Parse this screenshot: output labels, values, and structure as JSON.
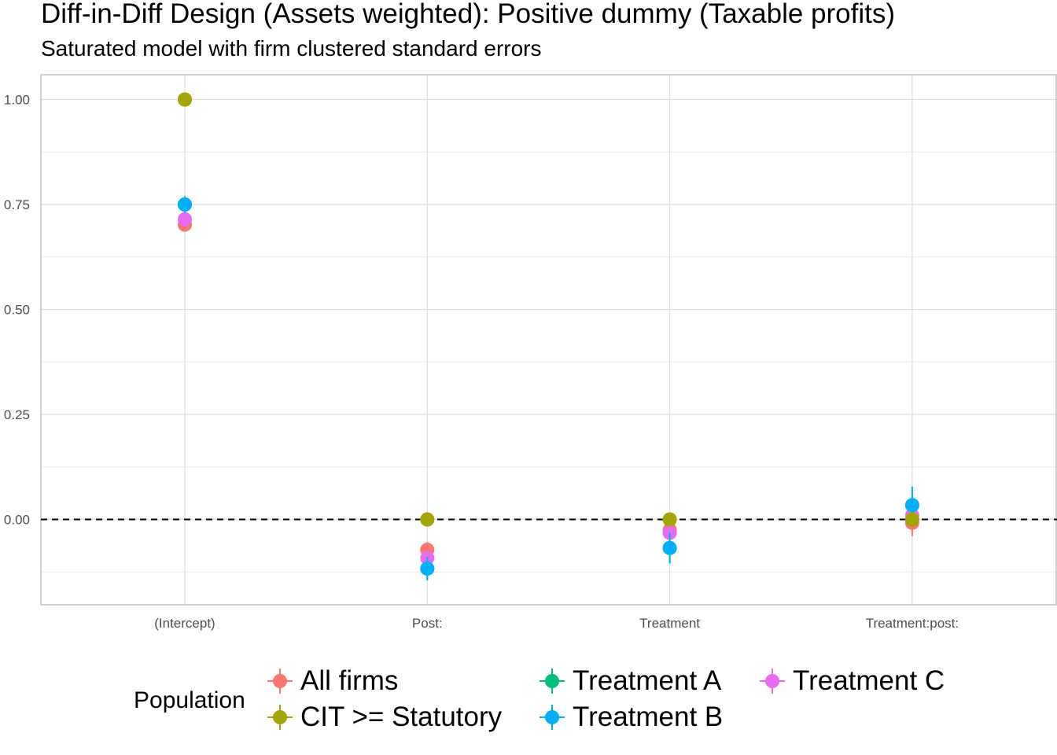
{
  "title": "Diff-in-Diff Design (Assets weighted): Positive dummy (Taxable profits)",
  "subtitle": "Saturated model with firm clustered standard errors",
  "legend": {
    "title": "Population"
  },
  "chart_data": {
    "type": "scatter",
    "title": "Diff-in-Diff Design (Assets weighted): Positive dummy (Taxable profits)",
    "subtitle": "Saturated model with firm clustered standard errors",
    "xlabel": "",
    "ylabel": "",
    "categories": [
      "(Intercept)",
      "Post:",
      "Treatment",
      "Treatment:post:"
    ],
    "ylim": [
      -0.2,
      1.06
    ],
    "yticks": [
      "0.00",
      "0.25",
      "0.50",
      "0.75",
      "1.00"
    ],
    "reference_line": 0,
    "grid": true,
    "legend_position": "bottom",
    "series": [
      {
        "name": "All firms",
        "color": "#F8766D",
        "values": [
          0.702,
          -0.072,
          -0.025,
          -0.008
        ],
        "ci_low": [
          0.69,
          -0.09,
          -0.045,
          -0.04
        ],
        "ci_high": [
          0.714,
          -0.054,
          -0.005,
          0.024
        ]
      },
      {
        "name": "CIT >= Statutory",
        "color": "#A3A500",
        "values": [
          1.0,
          0.0,
          0.0,
          0.0
        ],
        "ci_low": [
          0.998,
          -0.003,
          -0.003,
          -0.003
        ],
        "ci_high": [
          1.002,
          0.003,
          0.003,
          0.003
        ]
      },
      {
        "name": "Treatment A",
        "color": "#00BF7D",
        "values": [
          0.75,
          -0.117,
          -0.068,
          0.034
        ],
        "ci_low": [
          0.73,
          -0.145,
          -0.105,
          -0.01
        ],
        "ci_high": [
          0.77,
          -0.089,
          -0.031,
          0.078
        ]
      },
      {
        "name": "Treatment B",
        "color": "#00B0F6",
        "values": [
          0.75,
          -0.117,
          -0.068,
          0.034
        ],
        "ci_low": [
          0.73,
          -0.145,
          -0.105,
          -0.01
        ],
        "ci_high": [
          0.77,
          -0.089,
          -0.031,
          0.078
        ]
      },
      {
        "name": "Treatment C",
        "color": "#E76BF3",
        "values": [
          0.715,
          -0.092,
          -0.032,
          0.01
        ],
        "ci_low": [
          0.705,
          -0.105,
          -0.045,
          -0.005
        ],
        "ci_high": [
          0.725,
          -0.079,
          -0.019,
          0.025
        ]
      }
    ]
  }
}
